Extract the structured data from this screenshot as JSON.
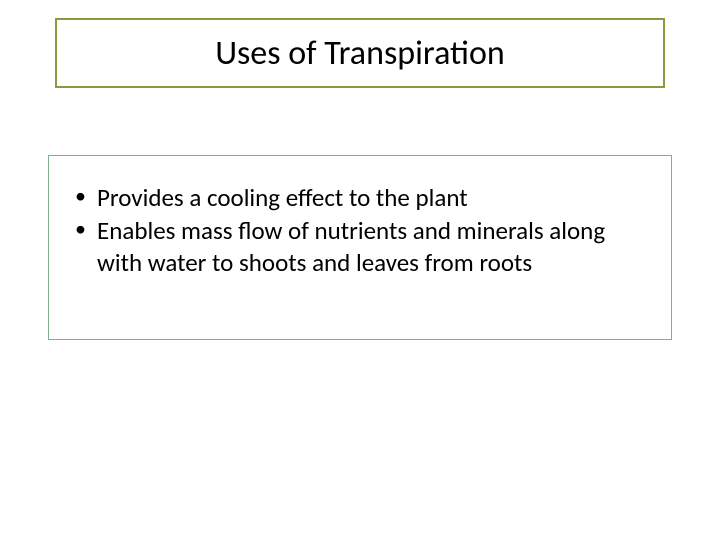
{
  "title": {
    "text": "Uses of Transpiration",
    "border_color": "#8a9a3a",
    "font_size": 34
  },
  "content": {
    "border_color": "#7fb28a",
    "font_size": 25,
    "bullets": [
      "Provides a cooling effect to the plant",
      "Enables mass flow of nutrients and minerals along with water to shoots and leaves from roots"
    ]
  },
  "background_color": "#ffffff"
}
